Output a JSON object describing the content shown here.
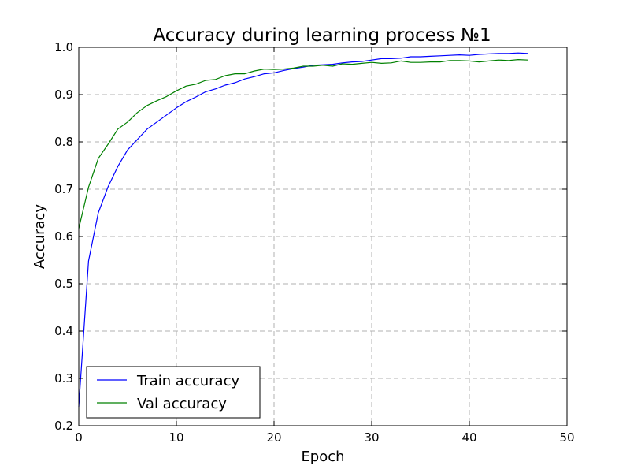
{
  "chart_data": {
    "type": "line",
    "title": "Accuracy during learning process №1",
    "xlabel": "Epoch",
    "ylabel": "Accuracy",
    "xlim": [
      0,
      50
    ],
    "ylim": [
      0.2,
      1.0
    ],
    "xticks": [
      "0",
      "10",
      "20",
      "30",
      "40",
      "50"
    ],
    "yticks": [
      "0.2",
      "0.3",
      "0.4",
      "0.5",
      "0.6",
      "0.7",
      "0.8",
      "0.9",
      "1.0"
    ],
    "grid": true,
    "legend_position": "lower-left",
    "x": [
      0,
      1,
      2,
      3,
      4,
      5,
      6,
      7,
      8,
      9,
      10,
      11,
      12,
      13,
      14,
      15,
      16,
      17,
      18,
      19,
      20,
      21,
      22,
      23,
      24,
      25,
      26,
      27,
      28,
      29,
      30,
      31,
      32,
      33,
      34,
      35,
      36,
      37,
      38,
      39,
      40,
      41,
      42,
      43,
      44,
      45,
      46
    ],
    "series": [
      {
        "name": "Train accuracy",
        "color": "#0000ff",
        "values": [
          0.24,
          0.548,
          0.65,
          0.705,
          0.748,
          0.783,
          0.805,
          0.827,
          0.842,
          0.857,
          0.872,
          0.885,
          0.895,
          0.906,
          0.912,
          0.92,
          0.925,
          0.933,
          0.938,
          0.944,
          0.946,
          0.951,
          0.955,
          0.958,
          0.962,
          0.963,
          0.964,
          0.967,
          0.969,
          0.97,
          0.973,
          0.976,
          0.976,
          0.977,
          0.98,
          0.98,
          0.981,
          0.982,
          0.983,
          0.984,
          0.983,
          0.985,
          0.986,
          0.987,
          0.987,
          0.988,
          0.987
        ]
      },
      {
        "name": "Val accuracy",
        "color": "#008000",
        "values": [
          0.617,
          0.704,
          0.765,
          0.795,
          0.827,
          0.842,
          0.862,
          0.877,
          0.887,
          0.896,
          0.908,
          0.918,
          0.922,
          0.93,
          0.932,
          0.94,
          0.944,
          0.944,
          0.95,
          0.954,
          0.953,
          0.954,
          0.956,
          0.96,
          0.96,
          0.962,
          0.96,
          0.965,
          0.964,
          0.966,
          0.968,
          0.966,
          0.967,
          0.971,
          0.968,
          0.968,
          0.969,
          0.969,
          0.972,
          0.972,
          0.971,
          0.969,
          0.971,
          0.973,
          0.972,
          0.974,
          0.973
        ]
      }
    ]
  }
}
